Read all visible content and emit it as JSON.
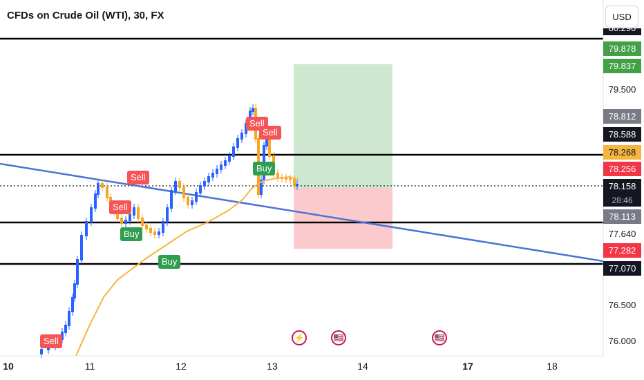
{
  "header": {
    "title": "CFDs on Crude Oil (WTI), 30, FX",
    "currency": "USD"
  },
  "price_axis": {
    "tick_labels": [
      "79.500",
      "77.640",
      "76.500",
      "76.000"
    ],
    "top_partial": "80.290"
  },
  "price_tags": [
    {
      "value": "79.878",
      "color": "#43a047",
      "text": "#ffffff"
    },
    {
      "value": "79.837",
      "color": "#43a047",
      "text": "#ffffff"
    },
    {
      "value": "78.812",
      "color": "#787b86",
      "text": "#ffffff"
    },
    {
      "value": "78.588",
      "color": "#131722",
      "text": "#ffffff"
    },
    {
      "value": "78.268",
      "color": "#f6b53f",
      "text": "#131722"
    },
    {
      "value": "78.256",
      "color": "#f23645",
      "text": "#ffffff"
    },
    {
      "value": "78.158",
      "color": "#131722",
      "text": "#ffffff"
    },
    {
      "value": "28:46",
      "color": "#131722",
      "text": "#b2b5be"
    },
    {
      "value": "78.113",
      "color": "#787b86",
      "text": "#ffffff"
    },
    {
      "value": "77.282",
      "color": "#f23645",
      "text": "#ffffff"
    },
    {
      "value": "77.070",
      "color": "#131722",
      "text": "#ffffff"
    }
  ],
  "time_axis": [
    {
      "label": "10",
      "bold": true
    },
    {
      "label": "11",
      "bold": false
    },
    {
      "label": "12",
      "bold": false
    },
    {
      "label": "13",
      "bold": false
    },
    {
      "label": "14",
      "bold": false
    },
    {
      "label": "17",
      "bold": true
    },
    {
      "label": "18",
      "bold": false
    }
  ],
  "signals": [
    {
      "type": "sell",
      "label": "Sell"
    },
    {
      "type": "sell",
      "label": "Sell"
    },
    {
      "type": "buy",
      "label": "Buy"
    },
    {
      "type": "buy",
      "label": "Buy"
    },
    {
      "type": "sell",
      "label": "Sell"
    },
    {
      "type": "sell",
      "label": "Sell"
    },
    {
      "type": "buy",
      "label": "Buy"
    },
    {
      "type": "sell",
      "label": "Sell"
    }
  ],
  "events": [
    {
      "icon": "lightning-icon",
      "glyph": "⚡"
    },
    {
      "icon": "us-flag-icon",
      "glyph": "🇺🇸"
    },
    {
      "icon": "us-flag-icon",
      "glyph": "🇺🇸"
    }
  ],
  "colors": {
    "trendline": "#4a72d9",
    "moving_average": "#f6b53f",
    "candle_up": "#2962ff",
    "candle_down": "#f6a623",
    "target_zone": "#c8e6c9",
    "stop_zone": "#fbc4c8",
    "level_line": "#000000"
  }
}
